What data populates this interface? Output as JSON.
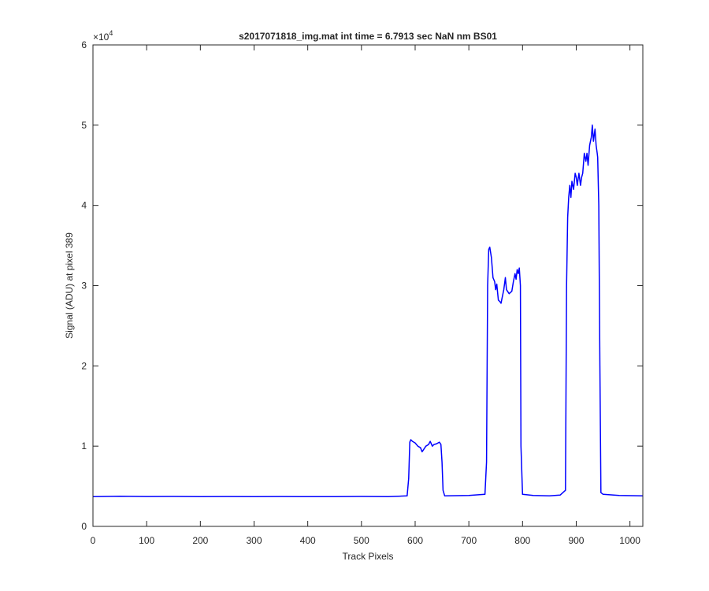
{
  "chart_data": {
    "type": "line",
    "title": "s2017071818_img.mat int time = 6.7913 sec  NaN nm BS01",
    "xlabel": "Track Pixels",
    "ylabel": "Signal (ADU) at pixel 389",
    "exponent_label": "×10",
    "exponent_power": "4",
    "xlim": [
      0,
      1024
    ],
    "ylim": [
      0,
      60000
    ],
    "x_ticks": [
      0,
      100,
      200,
      300,
      400,
      500,
      600,
      700,
      800,
      900,
      1000
    ],
    "x_tick_labels": [
      "0",
      "100",
      "200",
      "300",
      "400",
      "500",
      "600",
      "700",
      "800",
      "900",
      "1000"
    ],
    "y_ticks": [
      0,
      10000,
      20000,
      30000,
      40000,
      50000,
      60000
    ],
    "y_tick_labels": [
      "0",
      "1",
      "2",
      "3",
      "4",
      "5",
      "6"
    ],
    "grid": false,
    "legend": "none",
    "line_color": "#0000ff",
    "series": [
      {
        "x": [
          0,
          50,
          100,
          150,
          200,
          250,
          300,
          350,
          400,
          450,
          500,
          550,
          585,
          588,
          590,
          592,
          595,
          600,
          605,
          610,
          613,
          615,
          620,
          625,
          628,
          632,
          635,
          640,
          645,
          648,
          650,
          652,
          655,
          700,
          730,
          733,
          735,
          737,
          739,
          742,
          745,
          748,
          750,
          752,
          755,
          758,
          760,
          762,
          765,
          768,
          770,
          775,
          780,
          783,
          786,
          788,
          790,
          792,
          794,
          796,
          797,
          800,
          820,
          850,
          870,
          880,
          882,
          884,
          886,
          888,
          890,
          892,
          895,
          898,
          900,
          902,
          905,
          908,
          910,
          912,
          915,
          918,
          920,
          922,
          925,
          928,
          930,
          932,
          935,
          937,
          939,
          940,
          942,
          944,
          946,
          950,
          980,
          1024
        ],
        "y": [
          3700,
          3750,
          3720,
          3730,
          3700,
          3720,
          3700,
          3720,
          3700,
          3700,
          3730,
          3700,
          3800,
          6000,
          10500,
          10800,
          10600,
          10400,
          10000,
          9800,
          9300,
          9500,
          10000,
          10200,
          10600,
          10000,
          10200,
          10300,
          10500,
          10200,
          8000,
          4500,
          3800,
          3850,
          4000,
          8000,
          30000,
          34500,
          34800,
          33500,
          31000,
          30500,
          29500,
          30200,
          28200,
          28000,
          27800,
          28500,
          29500,
          31000,
          29500,
          29000,
          29300,
          30500,
          31500,
          30800,
          32000,
          31500,
          32200,
          30000,
          10000,
          4000,
          3850,
          3800,
          3900,
          4500,
          30000,
          38500,
          41000,
          42500,
          41000,
          43000,
          42000,
          44000,
          43500,
          42500,
          44000,
          42500,
          43500,
          44000,
          46500,
          45500,
          46500,
          45000,
          47500,
          48500,
          50000,
          48000,
          49500,
          47500,
          46500,
          46000,
          40000,
          20000,
          4200,
          4000,
          3850,
          3800
        ]
      }
    ]
  }
}
